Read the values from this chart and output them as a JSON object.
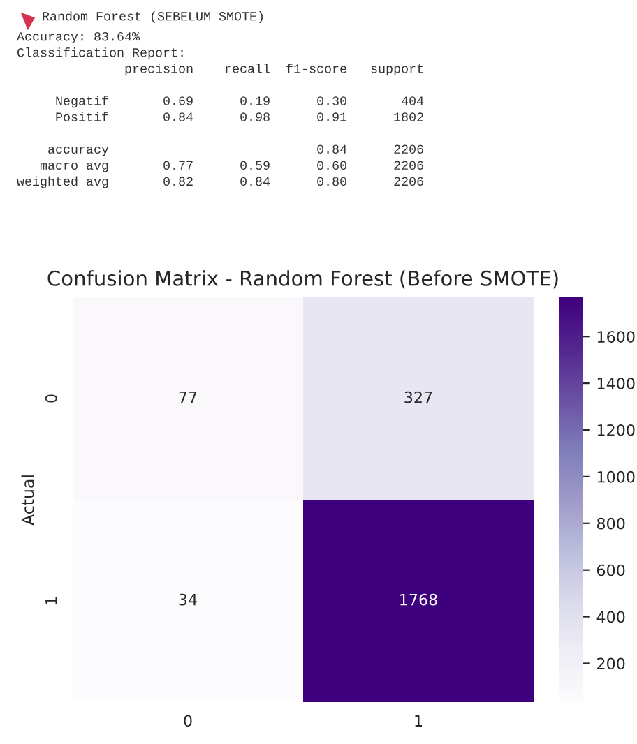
{
  "chart_data": {
    "type": "heatmap",
    "title": "Confusion Matrix - Random Forest (Before SMOTE)",
    "ylabel": "Actual",
    "categories": [
      "0",
      "1"
    ],
    "y_categories": [
      "0",
      "1"
    ],
    "cells": [
      [
        77,
        327
      ],
      [
        34,
        1768
      ]
    ],
    "data_labels": true,
    "clim": [
      34,
      1768
    ],
    "cticks": [
      200,
      400,
      600,
      800,
      1000,
      1200,
      1400,
      1600
    ],
    "annotations": [
      "Random Forest (SEBELUM SMOTE)",
      "Accuracy: 83.64%\nClassification Report:\n              precision    recall  f1-score   support\n\n     Negatif       0.69      0.19      0.30       404\n     Positif       0.84      0.98      0.91      1802\n\n    accuracy                           0.84      2206\n   macro avg       0.77      0.59      0.60      2206\nweighted avg       0.82      0.84      0.80      2206"
    ]
  }
}
